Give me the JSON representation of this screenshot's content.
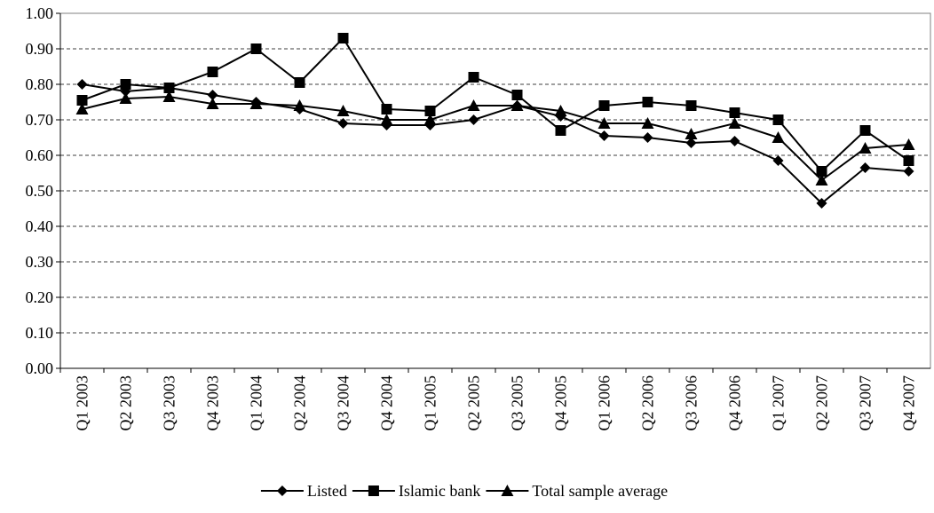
{
  "chart_data": {
    "type": "line",
    "categories": [
      "Q1 2003",
      "Q2 2003",
      "Q3 2003",
      "Q4 2003",
      "Q1 2004",
      "Q2 2004",
      "Q3 2004",
      "Q4 2004",
      "Q1 2005",
      "Q2 2005",
      "Q3 2005",
      "Q4 2005",
      "Q1 2006",
      "Q2 2006",
      "Q3 2006",
      "Q4 2006",
      "Q1 2007",
      "Q2 2007",
      "Q3 2007",
      "Q4 2007"
    ],
    "series": [
      {
        "name": "Listed",
        "color": "#000000",
        "marker": "diamond",
        "values": [
          0.8,
          0.78,
          0.79,
          0.77,
          0.75,
          0.73,
          0.69,
          0.685,
          0.685,
          0.7,
          0.74,
          0.71,
          0.655,
          0.65,
          0.635,
          0.64,
          0.585,
          0.465,
          0.565,
          0.555
        ]
      },
      {
        "name": "Islamic bank",
        "color": "#000000",
        "marker": "square",
        "values": [
          0.755,
          0.8,
          0.79,
          0.835,
          0.9,
          0.805,
          0.93,
          0.73,
          0.725,
          0.82,
          0.77,
          0.67,
          0.74,
          0.75,
          0.74,
          0.72,
          0.7,
          0.555,
          0.67,
          0.585
        ]
      },
      {
        "name": "Total sample average",
        "color": "#000000",
        "marker": "triangle",
        "values": [
          0.73,
          0.76,
          0.765,
          0.745,
          0.745,
          0.74,
          0.725,
          0.7,
          0.7,
          0.74,
          0.74,
          0.725,
          0.69,
          0.69,
          0.66,
          0.69,
          0.65,
          0.53,
          0.62,
          0.63
        ]
      }
    ],
    "ylim": [
      0,
      1
    ],
    "yticks": [
      {
        "value": 0,
        "label": "0.00"
      },
      {
        "value": 0.1,
        "label": "0.10"
      },
      {
        "value": 0.2,
        "label": "0.20"
      },
      {
        "value": 0.3,
        "label": "0.30"
      },
      {
        "value": 0.4,
        "label": "0.40"
      },
      {
        "value": 0.5,
        "label": "0.50"
      },
      {
        "value": 0.6,
        "label": "0.60"
      },
      {
        "value": 0.7,
        "label": "0.70"
      },
      {
        "value": 0.8,
        "label": "0.80"
      },
      {
        "value": 0.9,
        "label": "0.90"
      },
      {
        "value": 1,
        "label": "1.00"
      }
    ],
    "grid": true,
    "legend": "bottom"
  }
}
